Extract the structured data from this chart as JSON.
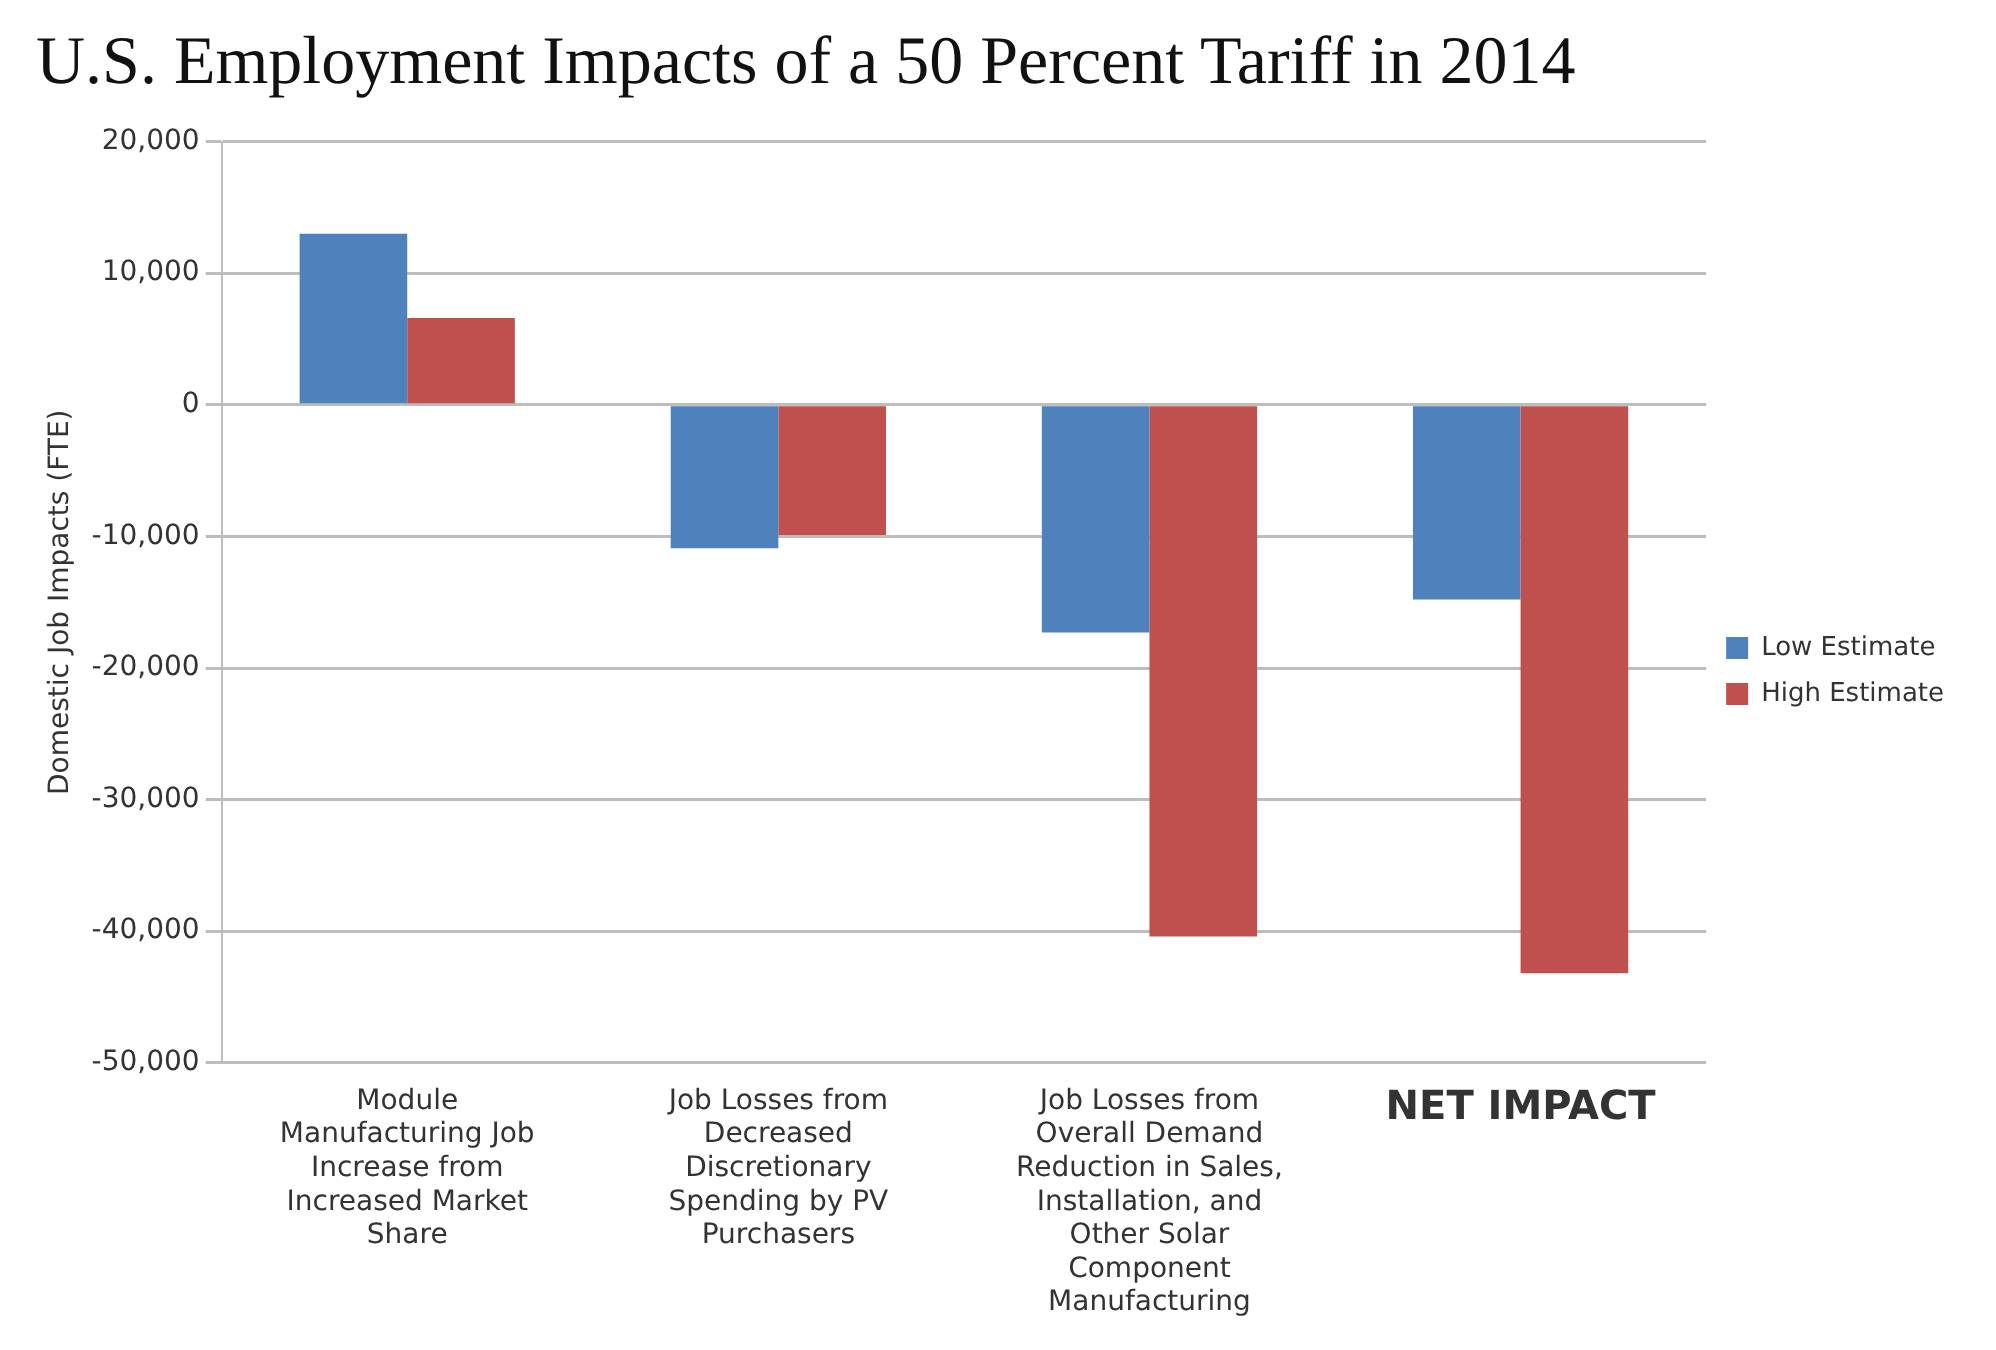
{
  "chart_data": {
    "type": "bar",
    "title": "U.S. Employment Impacts of a 50 Percent Tariff in 2014",
    "ylabel": "Domestic Job Impacts (FTE)",
    "categories": [
      "Module Manufacturing Job Increase from Increased Market Share",
      "Job Losses from Decreased Discretionary Spending by PV Purchasers",
      "Job Losses from Overall Demand Reduction in Sales, Installation, and Other Solar Component Manufacturing",
      "NET IMPACT"
    ],
    "series": [
      {
        "name": "Low Estimate",
        "color": "#4f81bd",
        "values": [
          13000,
          -10900,
          -17300,
          -14800
        ]
      },
      {
        "name": "High Estimate",
        "color": "#c0504d",
        "values": [
          6600,
          -9900,
          -40400,
          -43200
        ]
      }
    ],
    "ylim": [
      -50000,
      20000
    ],
    "yticks": [
      {
        "value": -50000,
        "label": "-50,000"
      },
      {
        "value": -40000,
        "label": "-40,000"
      },
      {
        "value": -30000,
        "label": "-30,000"
      },
      {
        "value": -20000,
        "label": "-20,000"
      },
      {
        "value": -10000,
        "label": "-10,000"
      },
      0,
      {
        "value": 10000,
        "label": "10,000"
      },
      {
        "value": 20000,
        "label": "20,000"
      }
    ],
    "grid": "y",
    "legend": "right"
  }
}
